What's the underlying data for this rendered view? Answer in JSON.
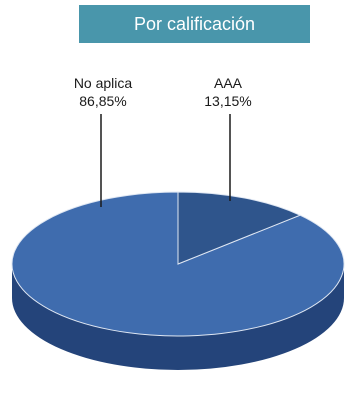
{
  "chart_data": {
    "type": "pie",
    "title": "Por calificación",
    "slices": [
      {
        "label": "No aplica",
        "value": 86.85,
        "value_text": "86,85%"
      },
      {
        "label": "AAA",
        "value": 13.15,
        "value_text": "13,15%"
      }
    ],
    "style": "3d",
    "colors": {
      "main": "#3f6cae",
      "small": "#2f558c",
      "side": "#24447a",
      "edge": "#dfe7f3",
      "title_bg": "#4996ab"
    }
  }
}
